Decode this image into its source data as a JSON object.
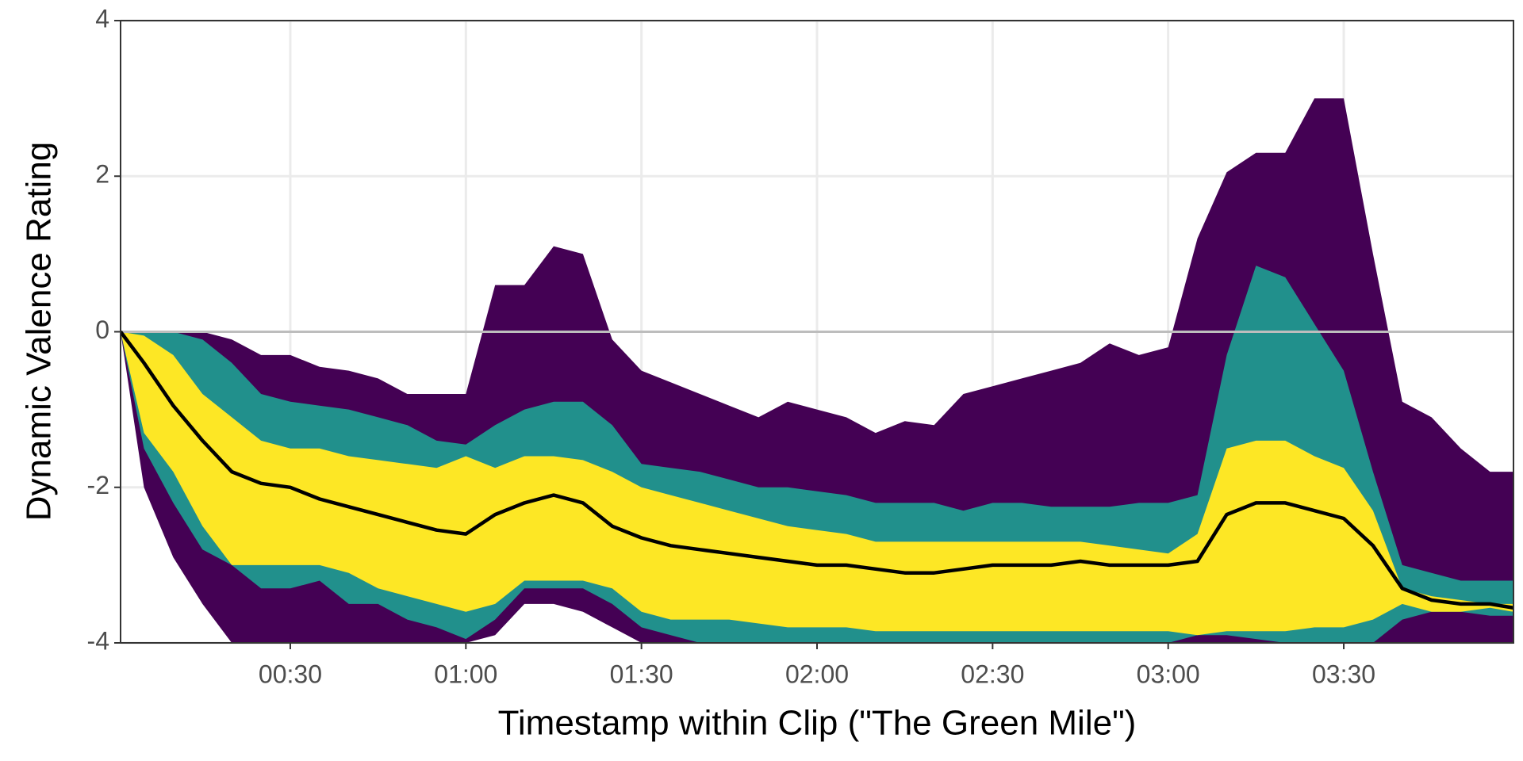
{
  "chart_data": {
    "type": "ribbon",
    "x_label": "Timestamp within Clip (\"The Green Mile\")",
    "y_label": "Dynamic Valence Rating",
    "x": [
      1,
      5,
      10,
      15,
      20,
      25,
      30,
      35,
      40,
      45,
      50,
      55,
      60,
      65,
      70,
      75,
      80,
      85,
      90,
      95,
      100,
      105,
      110,
      115,
      120,
      125,
      130,
      135,
      140,
      145,
      150,
      155,
      160,
      165,
      170,
      175,
      180,
      185,
      190,
      195,
      200,
      205,
      210,
      215,
      220,
      225,
      230,
      235,
      239
    ],
    "series": [
      {
        "color": "#440154",
        "high": [
          0,
          0,
          0,
          0,
          -0.1,
          -0.3,
          -0.3,
          -0.45,
          -0.5,
          -0.6,
          -0.8,
          -0.8,
          -0.8,
          0.6,
          0.6,
          1.1,
          1.0,
          -0.1,
          -0.5,
          -0.65,
          -0.8,
          -0.95,
          -1.1,
          -0.9,
          -1.0,
          -1.1,
          -1.3,
          -1.15,
          -1.2,
          -0.8,
          -0.7,
          -0.6,
          -0.5,
          -0.4,
          -0.15,
          -0.3,
          -0.2,
          1.2,
          2.05,
          2.3,
          2.3,
          3.0,
          3.0,
          1.0,
          -0.9,
          -1.1,
          -1.5,
          -1.8,
          -1.8
        ],
        "low": [
          0,
          -2.0,
          -2.9,
          -3.5,
          -4,
          -4,
          -4,
          -4,
          -4,
          -4,
          -4,
          -4,
          -4,
          -3.9,
          -3.5,
          -3.5,
          -3.6,
          -3.8,
          -4,
          -4,
          -4,
          -4,
          -4,
          -4,
          -4,
          -4,
          -4,
          -4,
          -4,
          -4,
          -4,
          -4,
          -4,
          -4,
          -4,
          -4,
          -4,
          -4,
          -4,
          -4,
          -4,
          -4,
          -4,
          -4,
          -4,
          -4,
          -4,
          -4,
          -4
        ]
      },
      {
        "color": "#21908c",
        "high": [
          0,
          0,
          0,
          -0.1,
          -0.4,
          -0.8,
          -0.9,
          -0.95,
          -1.0,
          -1.1,
          -1.2,
          -1.4,
          -1.45,
          -1.2,
          -1.0,
          -0.9,
          -0.9,
          -1.2,
          -1.7,
          -1.75,
          -1.8,
          -1.9,
          -2.0,
          -2.0,
          -2.05,
          -2.1,
          -2.2,
          -2.2,
          -2.2,
          -2.3,
          -2.2,
          -2.2,
          -2.25,
          -2.25,
          -2.25,
          -2.2,
          -2.2,
          -2.1,
          -0.3,
          0.85,
          0.7,
          0.1,
          -0.5,
          -1.8,
          -3.0,
          -3.1,
          -3.2,
          -3.2,
          -3.2
        ],
        "low": [
          0,
          -1.5,
          -2.2,
          -2.8,
          -3.0,
          -3.3,
          -3.3,
          -3.2,
          -3.5,
          -3.5,
          -3.7,
          -3.8,
          -3.95,
          -3.7,
          -3.3,
          -3.3,
          -3.3,
          -3.5,
          -3.8,
          -3.9,
          -4,
          -4,
          -4,
          -4,
          -4,
          -4,
          -4,
          -4,
          -4,
          -4,
          -4,
          -4,
          -4,
          -4,
          -4,
          -4,
          -4,
          -3.9,
          -3.9,
          -3.95,
          -4,
          -4,
          -4,
          -4,
          -3.7,
          -3.6,
          -3.6,
          -3.65,
          -3.65
        ]
      },
      {
        "color": "#fde725",
        "high": [
          0,
          -0.05,
          -0.3,
          -0.8,
          -1.1,
          -1.4,
          -1.5,
          -1.5,
          -1.6,
          -1.65,
          -1.7,
          -1.75,
          -1.6,
          -1.75,
          -1.6,
          -1.6,
          -1.65,
          -1.8,
          -2.0,
          -2.1,
          -2.2,
          -2.3,
          -2.4,
          -2.5,
          -2.55,
          -2.6,
          -2.7,
          -2.7,
          -2.7,
          -2.7,
          -2.7,
          -2.7,
          -2.7,
          -2.7,
          -2.75,
          -2.8,
          -2.85,
          -2.6,
          -1.5,
          -1.4,
          -1.4,
          -1.6,
          -1.75,
          -2.3,
          -3.3,
          -3.4,
          -3.45,
          -3.5,
          -3.5
        ],
        "low": [
          0,
          -1.3,
          -1.8,
          -2.5,
          -3.0,
          -3.0,
          -3.0,
          -3.0,
          -3.1,
          -3.3,
          -3.4,
          -3.5,
          -3.6,
          -3.5,
          -3.2,
          -3.2,
          -3.2,
          -3.3,
          -3.6,
          -3.7,
          -3.7,
          -3.7,
          -3.75,
          -3.8,
          -3.8,
          -3.8,
          -3.85,
          -3.85,
          -3.85,
          -3.85,
          -3.85,
          -3.85,
          -3.85,
          -3.85,
          -3.85,
          -3.85,
          -3.85,
          -3.9,
          -3.85,
          -3.85,
          -3.85,
          -3.8,
          -3.8,
          -3.7,
          -3.5,
          -3.6,
          -3.6,
          -3.55,
          -3.6
        ]
      },
      {
        "color": "#000000",
        "values": [
          0,
          -0.4,
          -0.95,
          -1.4,
          -1.8,
          -1.95,
          -2.0,
          -2.15,
          -2.25,
          -2.35,
          -2.45,
          -2.55,
          -2.6,
          -2.35,
          -2.2,
          -2.1,
          -2.2,
          -2.5,
          -2.65,
          -2.75,
          -2.8,
          -2.85,
          -2.9,
          -2.95,
          -3.0,
          -3.0,
          -3.05,
          -3.1,
          -3.1,
          -3.05,
          -3.0,
          -3.0,
          -3.0,
          -2.95,
          -3.0,
          -3.0,
          -3.0,
          -2.95,
          -2.35,
          -2.2,
          -2.2,
          -2.3,
          -2.4,
          -2.75,
          -3.3,
          -3.45,
          -3.5,
          -3.5,
          -3.55
        ]
      }
    ],
    "xlim": [
      1,
      239
    ],
    "xticks": [
      {
        "value": 30,
        "label": "00:30"
      },
      {
        "value": 60,
        "label": "01:00"
      },
      {
        "value": 90,
        "label": "01:30"
      },
      {
        "value": 120,
        "label": "02:00"
      },
      {
        "value": 150,
        "label": "02:30"
      },
      {
        "value": 180,
        "label": "03:00"
      },
      {
        "value": 210,
        "label": "03:30"
      }
    ],
    "ylim": [
      -4,
      4
    ],
    "yticks": [
      -4,
      -2,
      0,
      2,
      4
    ],
    "reference_line": 0,
    "grid": true
  }
}
